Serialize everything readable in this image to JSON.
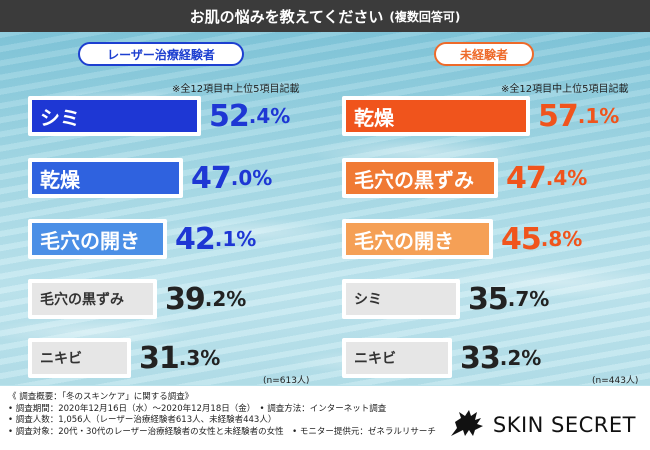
{
  "title": "お肌の悩みを教えてください",
  "title_sub": "(複数回答可)",
  "note": "※全12項目中上位5項目記載",
  "colors": {
    "blue_dark": "#1e37d4",
    "blue_mid": "#2f62df",
    "blue_light": "#4b8fe6",
    "orange_dark": "#f0541c",
    "orange_mid": "#f07a34",
    "orange_light": "#f5a056",
    "gray": "#e6e6e6"
  },
  "chart_data": [
    {
      "type": "bar",
      "group_label": "レーザー治療経験者",
      "n_label": "(n=613人)",
      "categories": [
        "シミ",
        "乾燥",
        "毛穴の開き",
        "毛穴の黒ずみ",
        "ニキビ"
      ],
      "values": [
        52.4,
        47.0,
        42.1,
        39.2,
        31.3
      ],
      "value_int": [
        "52",
        "47",
        "42",
        "39",
        "31"
      ],
      "value_dec": [
        ".4%",
        ".0%",
        ".1%",
        ".2%",
        ".3%"
      ]
    },
    {
      "type": "bar",
      "group_label": "未経験者",
      "n_label": "(n=443人)",
      "categories": [
        "乾燥",
        "毛穴の黒ずみ",
        "毛穴の開き",
        "シミ",
        "ニキビ"
      ],
      "values": [
        57.1,
        47.4,
        45.8,
        35.7,
        33.2
      ],
      "value_int": [
        "57",
        "47",
        "45",
        "35",
        "33"
      ],
      "value_dec": [
        ".1%",
        ".4%",
        ".8%",
        ".7%",
        ".2%"
      ]
    }
  ],
  "footer": {
    "lines": [
      "《 調査概要：「冬のスキンケア」に関する調査》",
      "• 調査期間：2020年12月16日（水）～2020年12月18日（金）　• 調査方法：インターネット調査",
      "• 調査人数：1,056人（レーザー治療経験者613人、未経験者443人）",
      "• 調査対象：20代・30代のレーザー治療経験者の女性と未経験者の女性　• モニター提供元：ゼネラルリサーチ"
    ],
    "brand": "SKIN SECRET",
    "brand_icon": "pegasus-logo-icon"
  }
}
